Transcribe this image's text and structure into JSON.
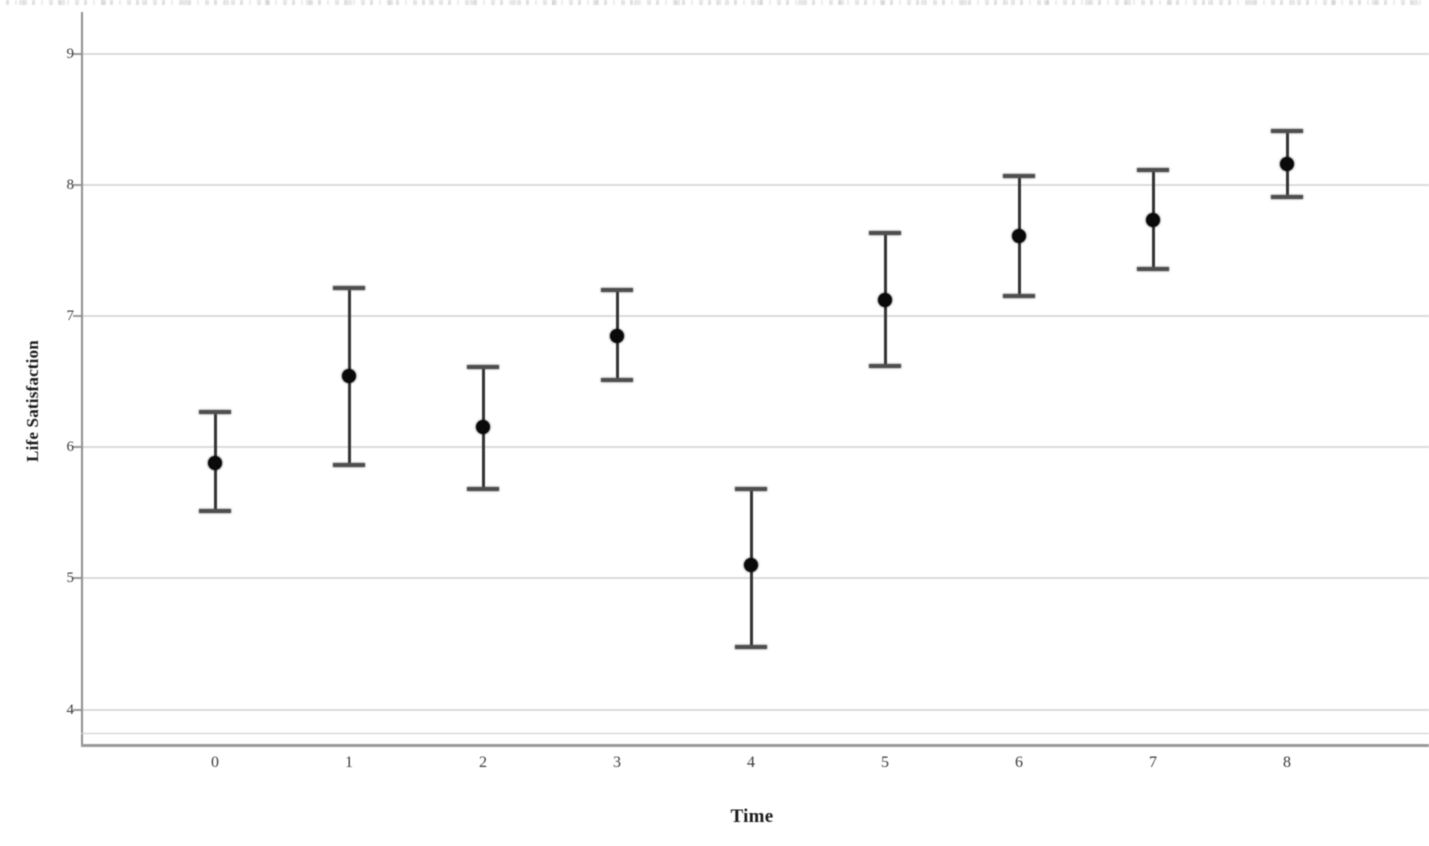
{
  "page": {
    "background": "#ffffff"
  },
  "chart_data": {
    "type": "scatter",
    "subtype": "point-estimates-with-error-bars",
    "title": "",
    "xlabel": "Time",
    "ylabel": "Life Satisfaction",
    "categories": [
      "0",
      "1",
      "2",
      "3",
      "4",
      "5",
      "6",
      "7",
      "8"
    ],
    "yticks": [
      4,
      5,
      6,
      7,
      8,
      9
    ],
    "ylim": [
      3.8,
      9.3
    ],
    "grid": "horizontal",
    "legend": "none",
    "series": [
      {
        "name": "Life Satisfaction",
        "means": [
          5.88,
          6.54,
          6.15,
          6.85,
          5.1,
          7.12,
          7.61,
          7.73,
          8.16
        ],
        "ci_low": [
          5.51,
          5.86,
          5.68,
          6.51,
          4.48,
          6.62,
          7.15,
          7.36,
          7.91
        ],
        "ci_high": [
          6.27,
          7.21,
          6.61,
          7.2,
          5.68,
          7.63,
          8.07,
          8.11,
          8.41
        ]
      }
    ],
    "colors": {
      "point": "#0a0a0a",
      "error_bar": "#343434",
      "gridline": "#dadada",
      "axis_line": "#8f8f8f",
      "tick_text": "#3b3b3b"
    }
  }
}
